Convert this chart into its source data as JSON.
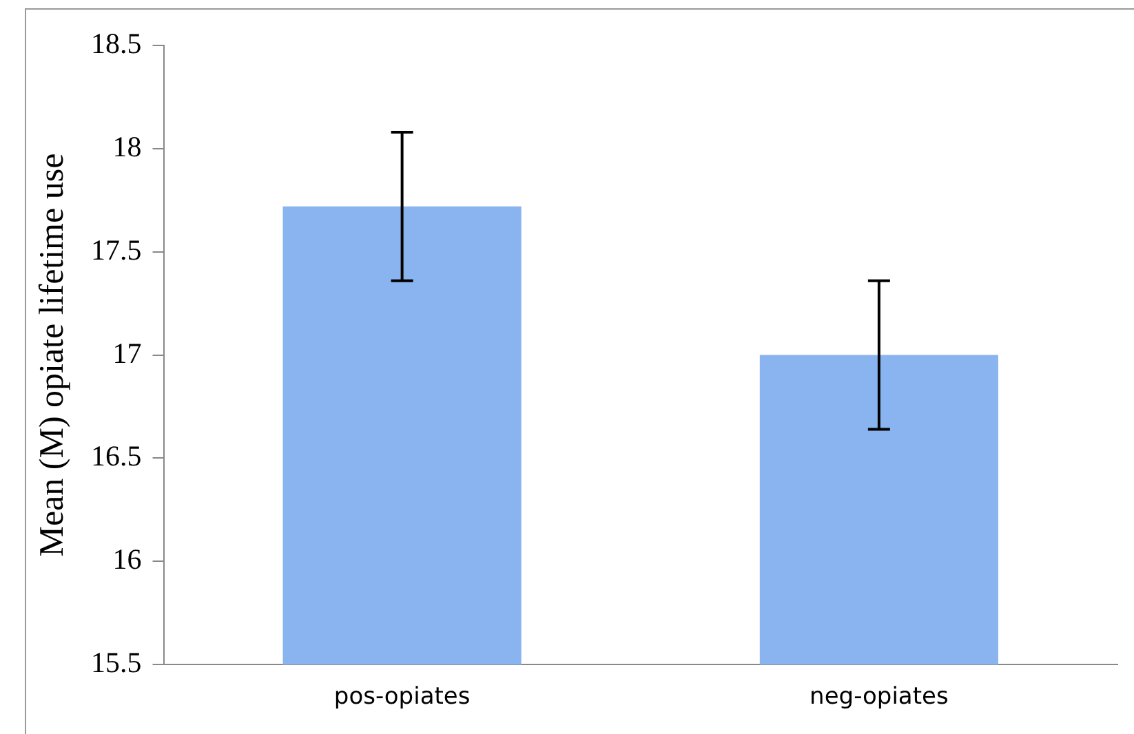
{
  "chart_data": {
    "type": "bar",
    "ylabel": "Mean (M) opiate lifetime use",
    "categories": [
      "pos-opiates",
      "neg-opiates"
    ],
    "values": [
      17.72,
      17.0
    ],
    "errors": [
      0.36,
      0.36
    ],
    "color": "#8ab4f0",
    "ylim": [
      15.5,
      18.5
    ],
    "yticks": [
      15.5,
      16,
      16.5,
      17,
      17.5,
      18,
      18.5
    ],
    "grid": false,
    "legend": false
  }
}
